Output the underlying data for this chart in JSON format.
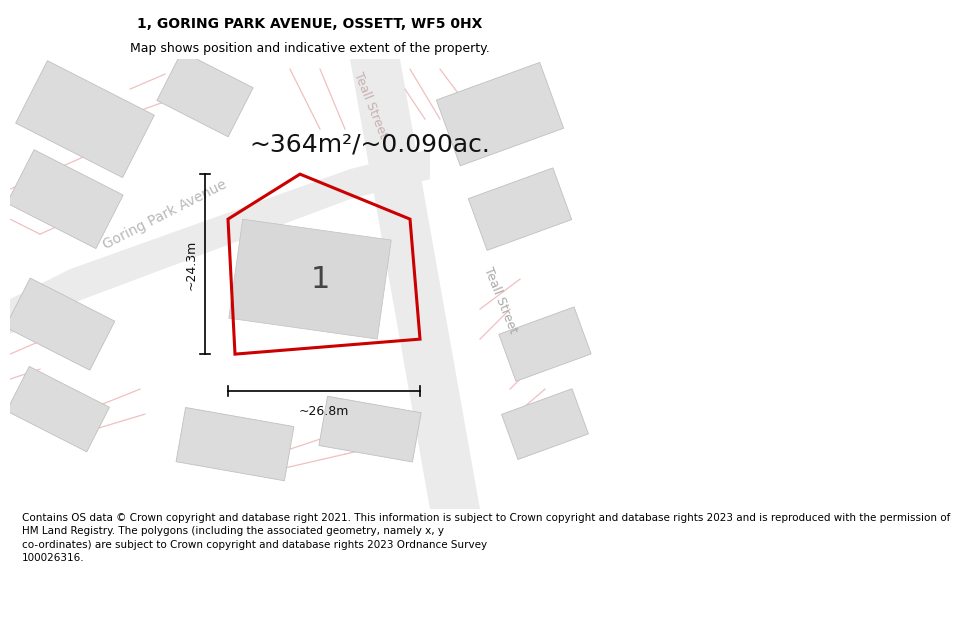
{
  "title_line1": "1, GORING PARK AVENUE, OSSETT, WF5 0HX",
  "title_line2": "Map shows position and indicative extent of the property.",
  "area_text": "~364m²/~0.090ac.",
  "label_number": "1",
  "dim_vertical": "~24.3m",
  "dim_horizontal": "~26.8m",
  "street_goring": "Goring Park Avenue",
  "street_teall_top": "Teall Street",
  "street_teall_right": "Teall Street",
  "footer_text": "Contains OS data © Crown copyright and database right 2021. This information is subject to Crown copyright and database rights 2023 and is reproduced with the permission of\nHM Land Registry. The polygons (including the associated geometry, namely x, y\nco-ordinates) are subject to Crown copyright and database rights 2023 Ordnance Survey\n100026316.",
  "bg_color": "#ffffff",
  "map_bg": "#ffffff",
  "plot_color": "#cc0000",
  "building_fill": "#dcdcdc",
  "building_edge": "#c0c0c0",
  "road_fill": "#eeeeee",
  "road_line_color": "#e8c8c8",
  "title_fontsize": 10,
  "subtitle_fontsize": 9,
  "area_fontsize": 18,
  "footer_fontsize": 7.5
}
